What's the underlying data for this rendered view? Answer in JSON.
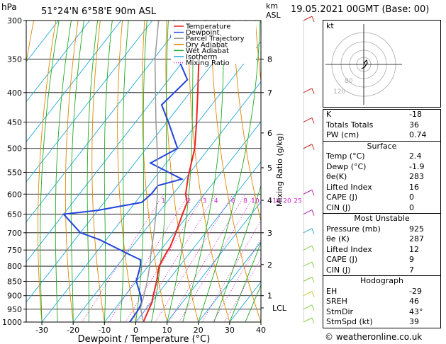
{
  "header": {
    "hpa_unit": "hPa",
    "station": "51°24'N  6°58'E  90m  ASL",
    "km_unit": "km",
    "asl_unit": "ASL",
    "datetime": "19.05.2021  00GMT  (Base: 00)"
  },
  "axes": {
    "xlabel": "Dewpoint / Temperature (°C)",
    "ylabel_right": "Mixing Ratio (g/kg)",
    "pressure_ticks": [
      300,
      350,
      400,
      450,
      500,
      550,
      600,
      650,
      700,
      750,
      800,
      850,
      900,
      950,
      1000
    ],
    "temp_ticks": [
      -30,
      -20,
      -10,
      0,
      10,
      20,
      30,
      40
    ],
    "km_ticks": [
      {
        "label": "8",
        "p": 350
      },
      {
        "label": "7",
        "p": 400
      },
      {
        "label": "6",
        "p": 470
      },
      {
        "label": "5",
        "p": 540
      },
      {
        "label": "4",
        "p": 615
      },
      {
        "label": "3",
        "p": 700
      },
      {
        "label": "2",
        "p": 795
      },
      {
        "label": "1",
        "p": 900
      },
      {
        "label": "LCL",
        "p": 945
      }
    ],
    "mixing_ratio_labels": [
      "1",
      "2",
      "3",
      "4",
      "6",
      "8",
      "10",
      "16",
      "20",
      "25"
    ]
  },
  "legend": {
    "items": [
      {
        "label": "Temperature",
        "color": "#ee2222",
        "style": "solid"
      },
      {
        "label": "Dewpoint",
        "color": "#2244dd",
        "style": "solid"
      },
      {
        "label": "Parcel Trajectory",
        "color": "#999999",
        "style": "solid"
      },
      {
        "label": "Dry Adiabat",
        "color": "#dd8800",
        "style": "solid"
      },
      {
        "label": "Wet Adiabat",
        "color": "#22aa22",
        "style": "solid"
      },
      {
        "label": "Isotherm",
        "color": "#22aadd",
        "style": "solid"
      },
      {
        "label": "Mixing Ratio",
        "color": "#cc22cc",
        "style": "dotted"
      }
    ]
  },
  "chart_data": {
    "type": "line",
    "title": "",
    "xlabel": "Dewpoint / Temperature (°C)",
    "ylabel": "hPa",
    "xlim": [
      -35,
      40
    ],
    "ylim": [
      1000,
      300
    ],
    "series": [
      {
        "name": "Temperature",
        "color": "#ee2222",
        "points": [
          {
            "p": 1000,
            "t": 2.4
          },
          {
            "p": 950,
            "t": 1.0
          },
          {
            "p": 925,
            "t": 0.3
          },
          {
            "p": 900,
            "t": -1.0
          },
          {
            "p": 850,
            "t": -3.5
          },
          {
            "p": 800,
            "t": -6.5
          },
          {
            "p": 760,
            "t": -7.5
          },
          {
            "p": 740,
            "t": -7.8
          },
          {
            "p": 700,
            "t": -9.5
          },
          {
            "p": 650,
            "t": -12.0
          },
          {
            "p": 620,
            "t": -13.5
          },
          {
            "p": 600,
            "t": -16.0
          },
          {
            "p": 560,
            "t": -19.5
          },
          {
            "p": 500,
            "t": -24.5
          },
          {
            "p": 450,
            "t": -30.5
          },
          {
            "p": 400,
            "t": -37.5
          },
          {
            "p": 350,
            "t": -45.5
          },
          {
            "p": 300,
            "t": -53.0
          }
        ]
      },
      {
        "name": "Dewpoint",
        "color": "#2244dd",
        "points": [
          {
            "p": 1000,
            "t": -1.9
          },
          {
            "p": 950,
            "t": -2.3
          },
          {
            "p": 925,
            "t": -3.0
          },
          {
            "p": 900,
            "t": -5.0
          },
          {
            "p": 850,
            "t": -10.0
          },
          {
            "p": 800,
            "t": -12.5
          },
          {
            "p": 780,
            "t": -14.0
          },
          {
            "p": 760,
            "t": -20.0
          },
          {
            "p": 720,
            "t": -32.0
          },
          {
            "p": 700,
            "t": -40.0
          },
          {
            "p": 650,
            "t": -50.0
          },
          {
            "p": 640,
            "t": -40.0
          },
          {
            "p": 620,
            "t": -28.0
          },
          {
            "p": 600,
            "t": -27.0
          },
          {
            "p": 580,
            "t": -27.0
          },
          {
            "p": 565,
            "t": -21.0
          },
          {
            "p": 530,
            "t": -35.0
          },
          {
            "p": 500,
            "t": -30.0
          },
          {
            "p": 450,
            "t": -39.5
          },
          {
            "p": 420,
            "t": -46.0
          },
          {
            "p": 400,
            "t": -45.0
          },
          {
            "p": 380,
            "t": -44.0
          },
          {
            "p": 350,
            "t": -52.0
          },
          {
            "p": 320,
            "t": -60.0
          },
          {
            "p": 300,
            "t": -63.0
          }
        ]
      },
      {
        "name": "Parcel Trajectory",
        "color": "#999999",
        "points": [
          {
            "p": 1000,
            "t": 2.4
          },
          {
            "p": 945,
            "t": -2.0
          },
          {
            "p": 900,
            "t": -4.0
          },
          {
            "p": 850,
            "t": -6.5
          },
          {
            "p": 800,
            "t": -9.5
          },
          {
            "p": 750,
            "t": -13.0
          },
          {
            "p": 700,
            "t": -16.5
          },
          {
            "p": 650,
            "t": -20.5
          },
          {
            "p": 600,
            "t": -25.0
          },
          {
            "p": 550,
            "t": -30.5
          },
          {
            "p": 500,
            "t": -36.5
          },
          {
            "p": 450,
            "t": -43.5
          },
          {
            "p": 400,
            "t": -51.0
          },
          {
            "p": 350,
            "t": -59.5
          },
          {
            "p": 300,
            "t": -68.0
          }
        ]
      }
    ]
  },
  "hodograph": {
    "unit_label": "kt",
    "ring_labels": [
      "80",
      "120"
    ]
  },
  "indices": {
    "top": [
      {
        "label": "K",
        "value": "-18"
      },
      {
        "label": "Totals Totals",
        "value": "36"
      },
      {
        "label": "PW (cm)",
        "value": "0.74"
      }
    ],
    "surface": {
      "title": "Surface",
      "rows": [
        {
          "label": "Temp (°C)",
          "value": "2.4"
        },
        {
          "label": "Dewp (°C)",
          "value": "-1.9"
        },
        {
          "label": "θe(K)",
          "value": "283"
        },
        {
          "label": "Lifted Index",
          "value": "16"
        },
        {
          "label": "CAPE (J)",
          "value": "0"
        },
        {
          "label": "CIN (J)",
          "value": "0"
        }
      ]
    },
    "most_unstable": {
      "title": "Most Unstable",
      "rows": [
        {
          "label": "Pressure (mb)",
          "value": "925"
        },
        {
          "label": "θe (K)",
          "value": "287"
        },
        {
          "label": "Lifted Index",
          "value": "12"
        },
        {
          "label": "CAPE (J)",
          "value": "9"
        },
        {
          "label": "CIN (J)",
          "value": "7"
        }
      ]
    },
    "hodograph_table": {
      "title": "Hodograph",
      "rows": [
        {
          "label": "EH",
          "value": "-29"
        },
        {
          "label": "SREH",
          "value": "46"
        },
        {
          "label": "StmDir",
          "value": "43°"
        },
        {
          "label": "StmSpd (kt)",
          "value": "39"
        }
      ]
    }
  },
  "footer": {
    "copyright": "© weatheronline.co.uk"
  }
}
